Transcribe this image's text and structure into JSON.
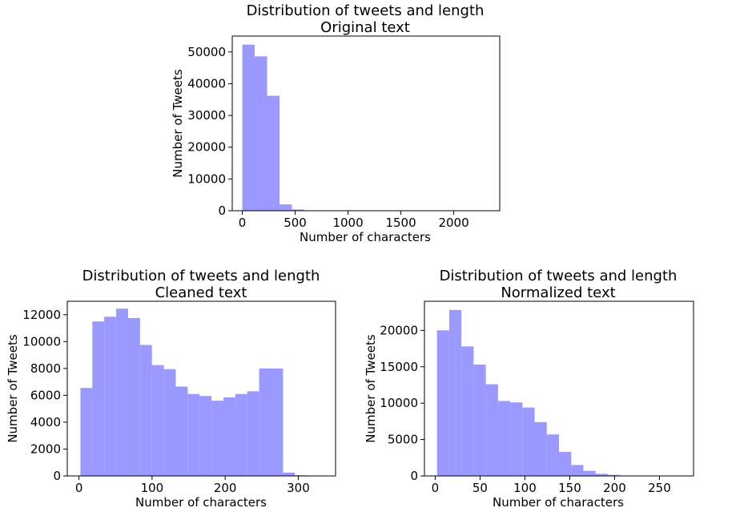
{
  "bar_color": "#9999ff",
  "chart_data": [
    {
      "type": "bar",
      "title": "Distribution of tweets and length",
      "subtitle": "Original text",
      "xlabel": "Number of characters",
      "ylabel": "Number of Tweets",
      "xlim": [
        -95,
        2435
      ],
      "ylim": [
        0,
        55000
      ],
      "xticks": [
        0,
        500,
        1000,
        1500,
        2000
      ],
      "yticks": [
        0,
        10000,
        20000,
        30000,
        40000,
        50000
      ],
      "bin_edges": [
        0,
        117.3,
        234.6,
        351.9,
        469.2,
        586.5,
        703.8,
        821.1,
        938.4,
        1055.7,
        1173,
        1290.3,
        1407.6,
        1524.9,
        1642.2,
        1759.5,
        1876.8,
        1994.1,
        2111.4,
        2228.7,
        2346
      ],
      "values": [
        52300,
        48600,
        36200,
        2000,
        400,
        60,
        20,
        10,
        5,
        3,
        2,
        2,
        1,
        1,
        1,
        0,
        0,
        0,
        1,
        1
      ]
    },
    {
      "type": "bar",
      "title": "Distribution of tweets and length",
      "subtitle": "Cleaned text",
      "xlabel": "Number of characters",
      "ylabel": "Number of Tweets",
      "xlim": [
        -16,
        351
      ],
      "ylim": [
        0,
        13000
      ],
      "xticks": [
        0,
        100,
        200,
        300
      ],
      "yticks": [
        0,
        2000,
        4000,
        6000,
        8000,
        10000,
        12000
      ],
      "bin_edges": [
        2,
        18.3,
        34.6,
        50.9,
        67.2,
        83.5,
        99.8,
        116.1,
        132.4,
        148.7,
        165,
        181.3,
        197.6,
        213.9,
        230.2,
        246.5,
        262.8,
        279.1,
        295.4,
        311.7,
        328
      ],
      "values": [
        6550,
        11500,
        11850,
        12450,
        11750,
        9750,
        8250,
        7950,
        6650,
        6100,
        5950,
        5600,
        5850,
        6100,
        6300,
        8000,
        8000,
        250,
        50,
        10
      ]
    },
    {
      "type": "bar",
      "title": "Distribution of tweets and length",
      "subtitle": "Normalized text",
      "xlabel": "Number of characters",
      "ylabel": "Number of Tweets",
      "xlim": [
        -12,
        288
      ],
      "ylim": [
        0,
        24000
      ],
      "xticks": [
        0,
        50,
        100,
        150,
        200,
        250
      ],
      "yticks": [
        0,
        5000,
        10000,
        15000,
        20000
      ],
      "bin_edges": [
        2,
        15.6,
        29.2,
        42.8,
        56.4,
        70,
        83.6,
        97.2,
        110.8,
        124.4,
        138,
        151.6,
        165.2,
        178.8,
        192.4,
        206,
        219.6,
        233.2,
        246.8,
        260.4,
        274
      ],
      "values": [
        20000,
        22800,
        17800,
        15300,
        12600,
        10300,
        10100,
        9400,
        7400,
        5700,
        3300,
        1500,
        700,
        300,
        150,
        50,
        20,
        10,
        5,
        5
      ]
    }
  ]
}
